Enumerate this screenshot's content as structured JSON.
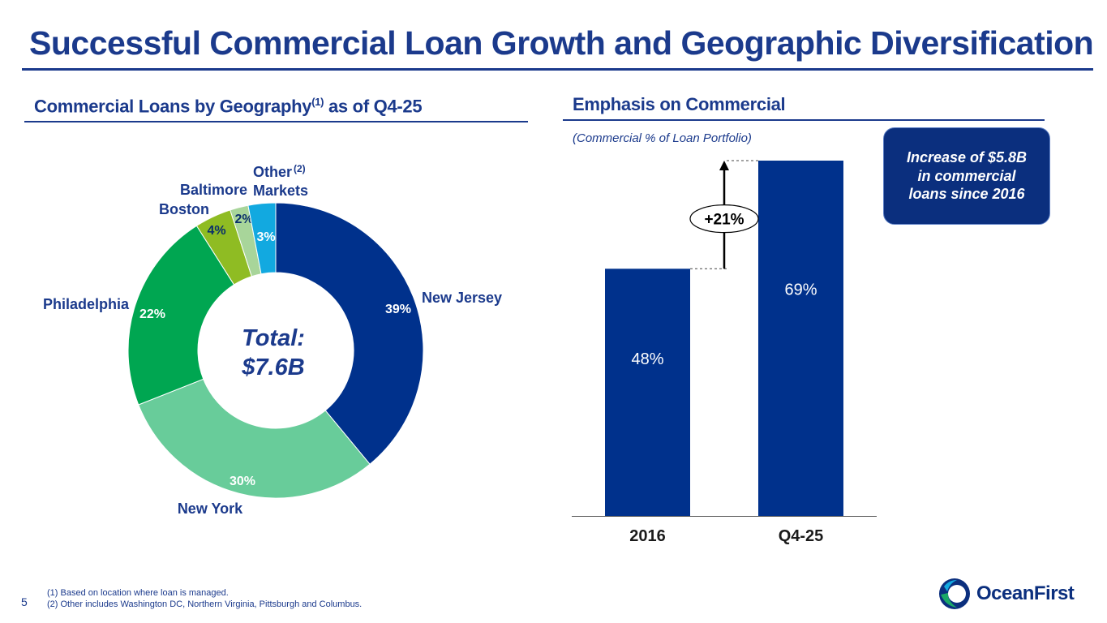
{
  "title": "Successful Commercial Loan Growth and Geographic Diversification",
  "left_section": {
    "title": "Commercial Loans by Geography",
    "title_sup": "(1)",
    "title_suffix": " as of Q4-25"
  },
  "right_section": {
    "title": "Emphasis on Commercial",
    "subtitle": "(Commercial % of Loan Portfolio)",
    "callout": "Increase of $5.8B in commercial loans since 2016",
    "change_label": "+21%"
  },
  "chart_data": [
    {
      "type": "pie",
      "title": "Commercial Loans by Geography as of Q4-25",
      "center_label": [
        "Total:",
        "$7.6B"
      ],
      "slices": [
        {
          "name": "New Jersey",
          "value": 39,
          "label": "39%",
          "color": "#00318c"
        },
        {
          "name": "New York",
          "value": 30,
          "label": "30%",
          "color": "#68cc9a"
        },
        {
          "name": "Philadelphia",
          "value": 22,
          "label": "22%",
          "color": "#00a651"
        },
        {
          "name": "Boston",
          "value": 4,
          "label": "4%",
          "color": "#8fbc23"
        },
        {
          "name": "Baltimore",
          "value": 2,
          "label": "2%",
          "color": "#a8d59a"
        },
        {
          "name": "Other(2) Markets",
          "value": 3,
          "label": "3%",
          "color": "#12a9e0"
        }
      ],
      "category_labels": {
        "new_jersey": "New Jersey",
        "new_york": "New York",
        "philadelphia": "Philadelphia",
        "boston": "Boston",
        "baltimore": "Baltimore",
        "other": "Other",
        "other_sup": "(2)",
        "other_line2": "Markets"
      }
    },
    {
      "type": "bar",
      "title": "Emphasis on Commercial",
      "ylabel": "Commercial % of Loan Portfolio",
      "categories": [
        "2016",
        "Q4-25"
      ],
      "values": [
        48,
        69
      ],
      "labels": [
        "48%",
        "69%"
      ],
      "ylim": [
        0,
        69
      ],
      "color": "#00318c"
    }
  ],
  "footnotes": [
    "(1)  Based on location where loan is managed.",
    "(2)  Other includes Washington DC, Northern Virginia, Pittsburgh and Columbus."
  ],
  "page_number": "5",
  "logo_text": "OceanFirst",
  "colors": {
    "brand_blue": "#1b3a8c",
    "bar_blue": "#00318c"
  }
}
